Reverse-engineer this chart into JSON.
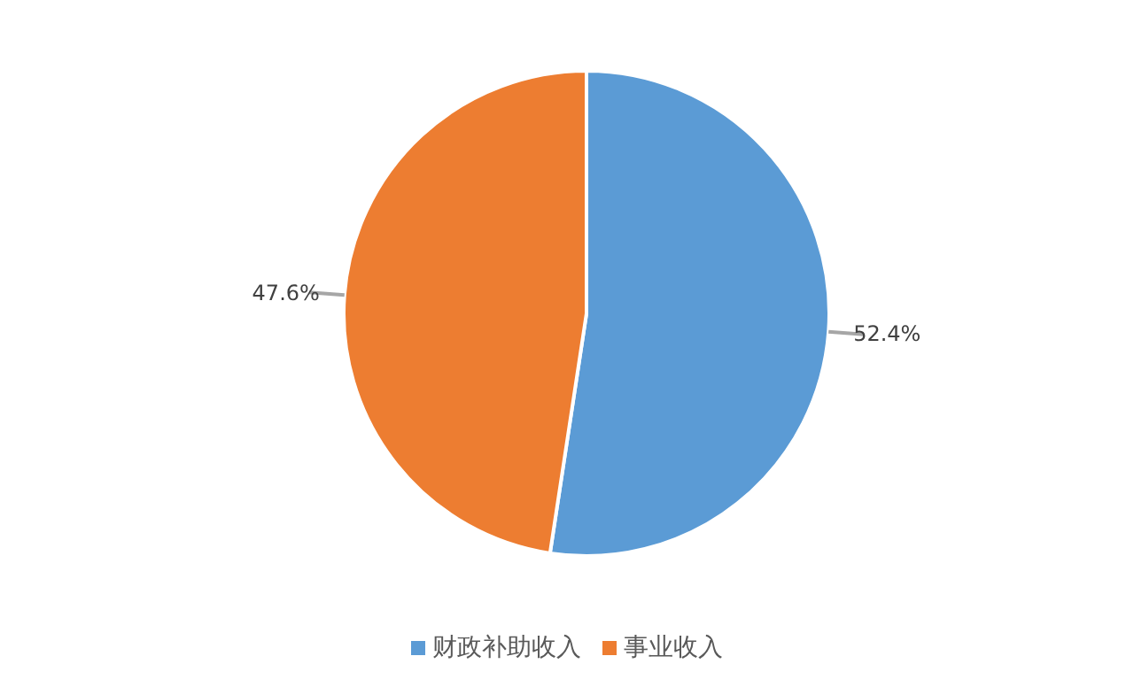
{
  "chart_data": {
    "type": "pie",
    "categories": [
      "财政补助收入",
      "事业收入"
    ],
    "values": [
      52.4,
      47.6
    ],
    "colors": [
      "#5b9bd5",
      "#ed7d31"
    ],
    "value_labels": [
      "52.4%",
      "47.6%"
    ],
    "legend": "bottom"
  }
}
